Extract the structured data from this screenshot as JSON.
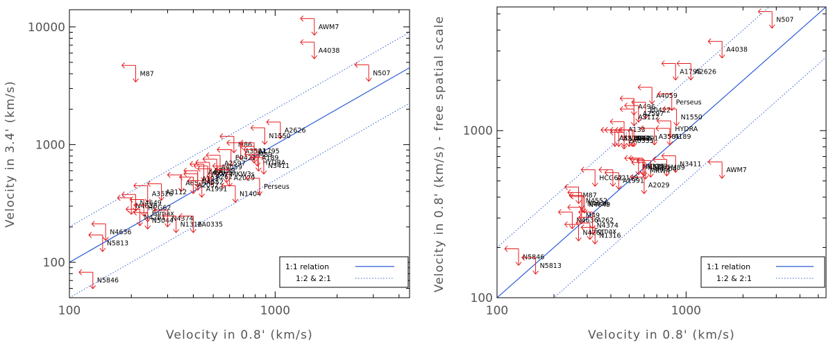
{
  "chart_data": [
    {
      "type": "scatter",
      "xlabel": "Velocity in 0.8' (km/s)",
      "ylabel": "Velocity in 3.4' (km/s)",
      "xscale": "log",
      "yscale": "log",
      "xlim": [
        100,
        4500
      ],
      "ylim": [
        50,
        14000
      ],
      "xticks": [
        {
          "value": 100,
          "label": "100"
        },
        {
          "value": 1000,
          "label": "1000"
        }
      ],
      "yticks": [
        {
          "value": 100,
          "label": "100"
        },
        {
          "value": 1000,
          "label": "1000"
        },
        {
          "value": 10000,
          "label": "10000"
        }
      ],
      "marker": "upper-limit arrows",
      "legend": {
        "placement": "bottom-right",
        "entries": [
          {
            "label": "1:1 relation",
            "style": "solid"
          },
          {
            "label": "1:2 & 2:1",
            "style": "dotted"
          }
        ]
      },
      "relations": [
        {
          "name": "1:1",
          "factor": 1,
          "style": "solid"
        },
        {
          "name": "1:2",
          "factor": 0.5,
          "style": "dotted"
        },
        {
          "name": "2:1",
          "factor": 2,
          "style": "dotted"
        }
      ],
      "points": [
        {
          "name": "AWM7",
          "x": 1550,
          "y": 10000
        },
        {
          "name": "A4038",
          "x": 1550,
          "y": 6300
        },
        {
          "name": "N507",
          "x": 2850,
          "y": 4050
        },
        {
          "name": "M87",
          "x": 210,
          "y": 4000
        },
        {
          "name": "A2626",
          "x": 1060,
          "y": 1320
        },
        {
          "name": "N1550",
          "x": 890,
          "y": 1180
        },
        {
          "name": "M86",
          "x": 630,
          "y": 1000
        },
        {
          "name": "A3581",
          "x": 680,
          "y": 880
        },
        {
          "name": "A1795",
          "x": 790,
          "y": 880
        },
        {
          "name": "M89",
          "x": 790,
          "y": 820
        },
        {
          "name": "A189",
          "x": 820,
          "y": 770
        },
        {
          "name": "E0422",
          "x": 610,
          "y": 770
        },
        {
          "name": "HYDRA",
          "x": 830,
          "y": 700
        },
        {
          "name": "N3411",
          "x": 880,
          "y": 660
        },
        {
          "name": "A2597",
          "x": 540,
          "y": 690
        },
        {
          "name": "A4059",
          "x": 520,
          "y": 640
        },
        {
          "name": "A2199",
          "x": 480,
          "y": 600
        },
        {
          "name": "A496",
          "x": 450,
          "y": 580
        },
        {
          "name": "MKW4",
          "x": 470,
          "y": 560
        },
        {
          "name": "MKW3s",
          "x": 580,
          "y": 560
        },
        {
          "name": "A262",
          "x": 490,
          "y": 530
        },
        {
          "name": "A2029",
          "x": 600,
          "y": 520
        },
        {
          "name": "A133",
          "x": 420,
          "y": 510
        },
        {
          "name": "A85",
          "x": 350,
          "y": 470
        },
        {
          "name": "N4552",
          "x": 420,
          "y": 480
        },
        {
          "name": "A2052",
          "x": 400,
          "y": 450
        },
        {
          "name": "N1404",
          "x": 640,
          "y": 380
        },
        {
          "name": "Perseus",
          "x": 840,
          "y": 440
        },
        {
          "name": "A3526",
          "x": 240,
          "y": 380
        },
        {
          "name": "A3112",
          "x": 280,
          "y": 395
        },
        {
          "name": "A1991",
          "x": 440,
          "y": 420
        },
        {
          "name": "N4649",
          "x": 210,
          "y": 320
        },
        {
          "name": "N4636",
          "x": 200,
          "y": 300
        },
        {
          "name": "HCG62",
          "x": 230,
          "y": 290
        },
        {
          "name": "Fornax",
          "x": 240,
          "y": 260
        },
        {
          "name": "N4261",
          "x": 220,
          "y": 240
        },
        {
          "name": "N5044",
          "x": 240,
          "y": 225
        },
        {
          "name": "N4374",
          "x": 300,
          "y": 235
        },
        {
          "name": "N1316",
          "x": 330,
          "y": 210
        },
        {
          "name": "2A0335",
          "x": 400,
          "y": 210
        },
        {
          "name": "N4636",
          "x": 150,
          "y": 180
        },
        {
          "name": "N5813",
          "x": 145,
          "y": 145
        },
        {
          "name": "N5846",
          "x": 130,
          "y": 70
        }
      ]
    },
    {
      "type": "scatter",
      "xlabel": "Velocity in 0.8' (km/s)",
      "ylabel": "Velocity in 0.8' (km/s) - free spatial scale",
      "xscale": "log",
      "yscale": "log",
      "xlim": [
        100,
        5500
      ],
      "ylim": [
        100,
        5500
      ],
      "xticks": [
        {
          "value": 100,
          "label": "100"
        },
        {
          "value": 1000,
          "label": "1000"
        }
      ],
      "yticks": [
        {
          "value": 100,
          "label": "100"
        },
        {
          "value": 1000,
          "label": "1000"
        }
      ],
      "marker": "upper-limit arrows",
      "legend": {
        "placement": "bottom-right",
        "entries": [
          {
            "label": "1:1 relation",
            "style": "solid"
          },
          {
            "label": "1:2 & 2:1",
            "style": "dotted"
          }
        ]
      },
      "relations": [
        {
          "name": "1:1",
          "factor": 1,
          "style": "solid"
        },
        {
          "name": "1:2",
          "factor": 0.5,
          "style": "dotted"
        },
        {
          "name": "2:1",
          "factor": 2,
          "style": "dotted"
        }
      ],
      "points": [
        {
          "name": "N507",
          "x": 2850,
          "y": 4600
        },
        {
          "name": "A4038",
          "x": 1550,
          "y": 3050
        },
        {
          "name": "A1795",
          "x": 880,
          "y": 2250
        },
        {
          "name": "A2626",
          "x": 1060,
          "y": 2250
        },
        {
          "name": "A4059",
          "x": 660,
          "y": 1620
        },
        {
          "name": "Perseus",
          "x": 840,
          "y": 1480
        },
        {
          "name": "A496",
          "x": 530,
          "y": 1390
        },
        {
          "name": "E0422",
          "x": 610,
          "y": 1320
        },
        {
          "name": "A2597",
          "x": 560,
          "y": 1260
        },
        {
          "name": "A3112",
          "x": 530,
          "y": 1200
        },
        {
          "name": "N1550",
          "x": 890,
          "y": 1200
        },
        {
          "name": "A133",
          "x": 470,
          "y": 1010
        },
        {
          "name": "HYDRA",
          "x": 830,
          "y": 1020
        },
        {
          "name": "A3581",
          "x": 680,
          "y": 920
        },
        {
          "name": "A189",
          "x": 820,
          "y": 920
        },
        {
          "name": "A85",
          "x": 420,
          "y": 900
        },
        {
          "name": "A2052",
          "x": 440,
          "y": 900
        },
        {
          "name": "N5044",
          "x": 470,
          "y": 900
        },
        {
          "name": "A262",
          "x": 500,
          "y": 900
        },
        {
          "name": "M86",
          "x": 530,
          "y": 900
        },
        {
          "name": "N4201",
          "x": 520,
          "y": 900
        },
        {
          "name": "2A0335",
          "x": 470,
          "y": 870
        },
        {
          "name": "N3411",
          "x": 880,
          "y": 630
        },
        {
          "name": "N4325",
          "x": 560,
          "y": 610
        },
        {
          "name": "MKW3s",
          "x": 590,
          "y": 610
        },
        {
          "name": "A3526",
          "x": 600,
          "y": 600
        },
        {
          "name": "N4604",
          "x": 650,
          "y": 590
        },
        {
          "name": "M89",
          "x": 790,
          "y": 600
        },
        {
          "name": "MKW4",
          "x": 610,
          "y": 575
        },
        {
          "name": "AWM7",
          "x": 1550,
          "y": 580
        },
        {
          "name": "HCG62",
          "x": 330,
          "y": 520
        },
        {
          "name": "A2199",
          "x": 410,
          "y": 520
        },
        {
          "name": "A1991",
          "x": 440,
          "y": 500
        },
        {
          "name": "A2029",
          "x": 600,
          "y": 470
        },
        {
          "name": "M87",
          "x": 270,
          "y": 410
        },
        {
          "name": "N4552",
          "x": 280,
          "y": 380
        },
        {
          "name": "N4636",
          "x": 285,
          "y": 365
        },
        {
          "name": "N4649",
          "x": 290,
          "y": 360
        },
        {
          "name": "M49",
          "x": 280,
          "y": 310
        },
        {
          "name": "N4636",
          "x": 250,
          "y": 290
        },
        {
          "name": "A262",
          "x": 320,
          "y": 290
        },
        {
          "name": "N4374",
          "x": 320,
          "y": 270
        },
        {
          "name": "Fornax",
          "x": 310,
          "y": 250
        },
        {
          "name": "N4261",
          "x": 270,
          "y": 245
        },
        {
          "name": "N1316",
          "x": 330,
          "y": 235
        },
        {
          "name": "N5846",
          "x": 130,
          "y": 175
        },
        {
          "name": "N5813",
          "x": 160,
          "y": 155
        }
      ]
    }
  ]
}
